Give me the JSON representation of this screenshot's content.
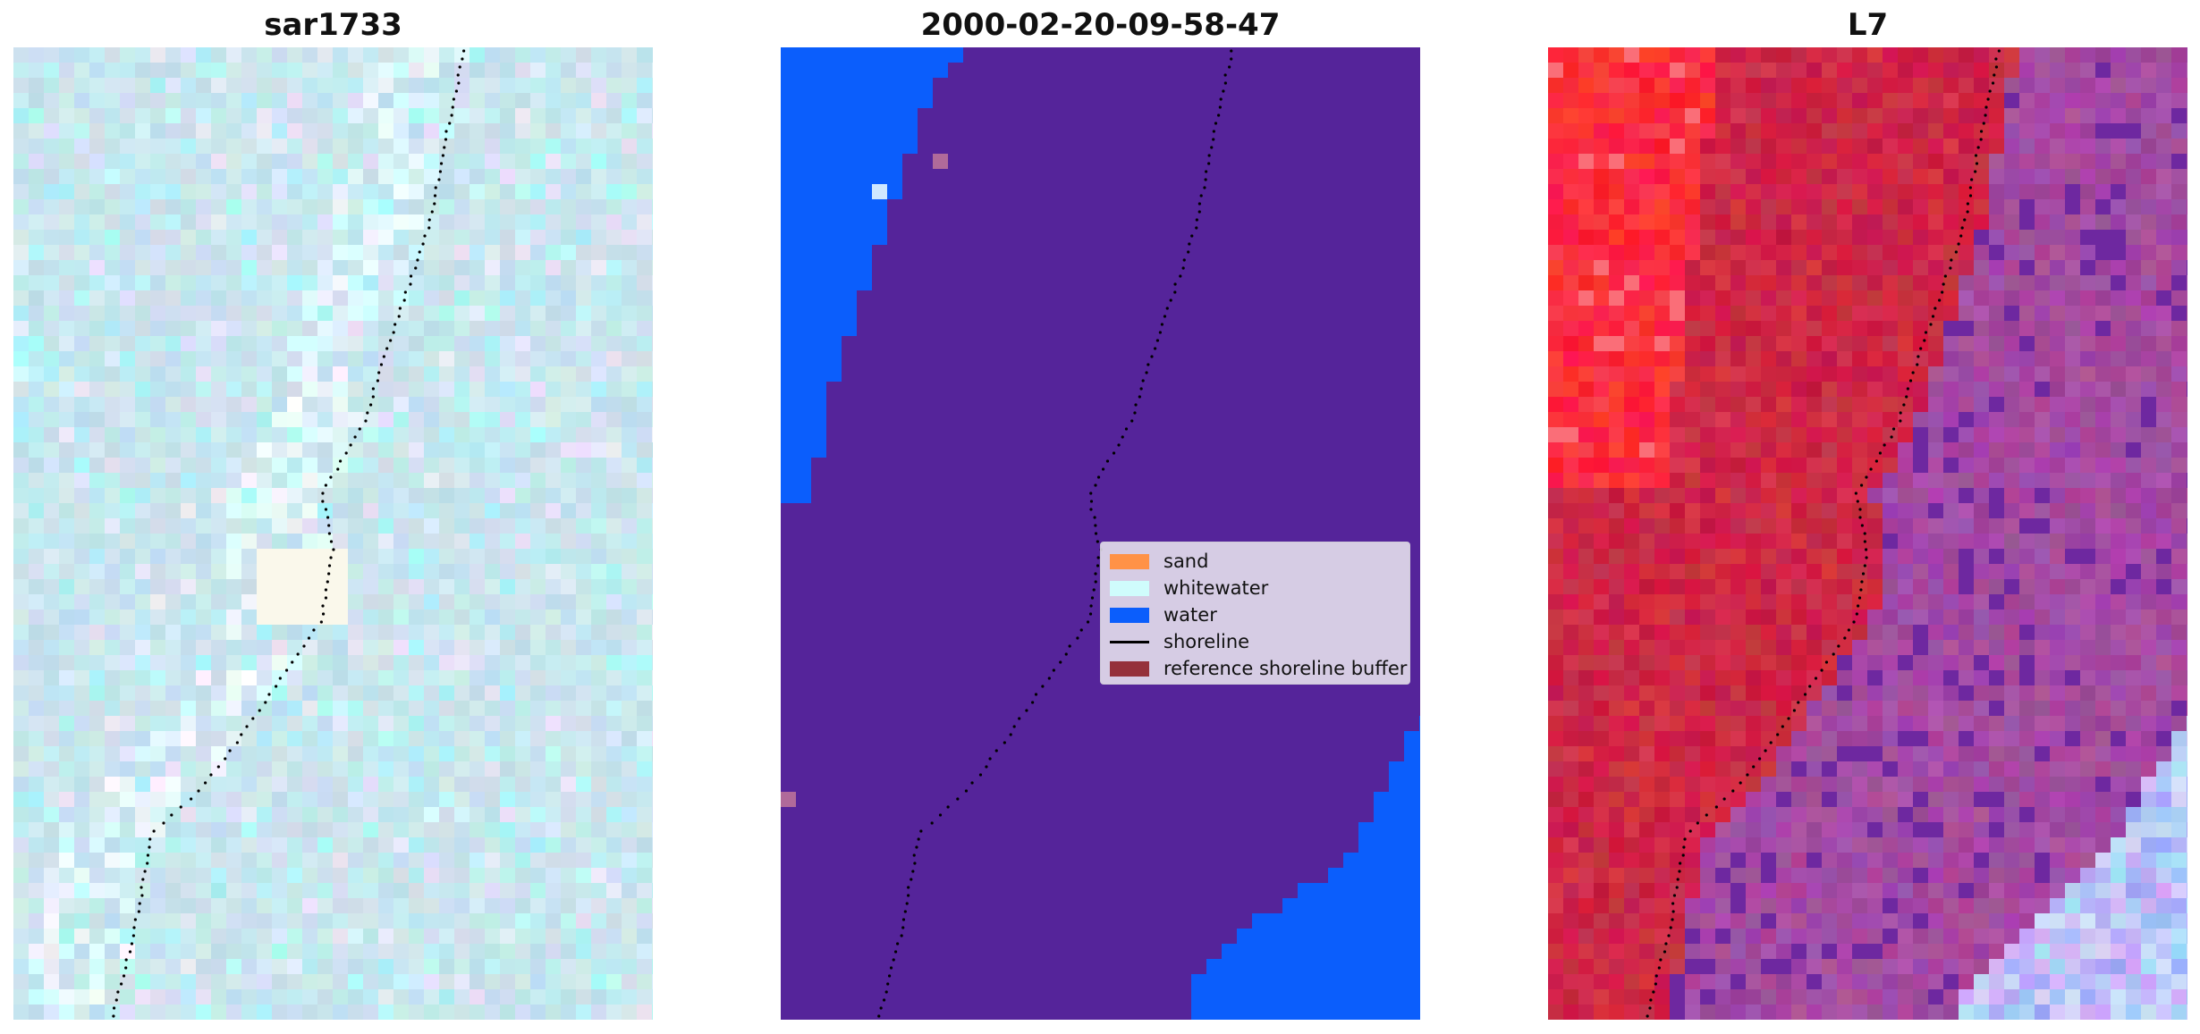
{
  "panels": [
    {
      "title": "sar1733"
    },
    {
      "title": "2000-02-20-09-58-47"
    },
    {
      "title": "L7"
    }
  ],
  "legend": {
    "items": [
      {
        "label": "sand",
        "color": "#ff9247",
        "kind": "patch"
      },
      {
        "label": "whitewater",
        "color": "#cffcfc",
        "kind": "patch"
      },
      {
        "label": "water",
        "color": "#0b5efc",
        "kind": "patch"
      },
      {
        "label": "shoreline",
        "color": "#000000",
        "kind": "line"
      },
      {
        "label": "reference shoreline buffer",
        "color": "#8e2028",
        "kind": "patch"
      }
    ]
  },
  "colors": {
    "land_class": "#55249a",
    "water_class": "#0b5efc",
    "sar_base": "#b9dce4",
    "l7_land": "#c8153e",
    "l7_mixed": "#a04a98",
    "l7_water": "#9fa6f7"
  }
}
